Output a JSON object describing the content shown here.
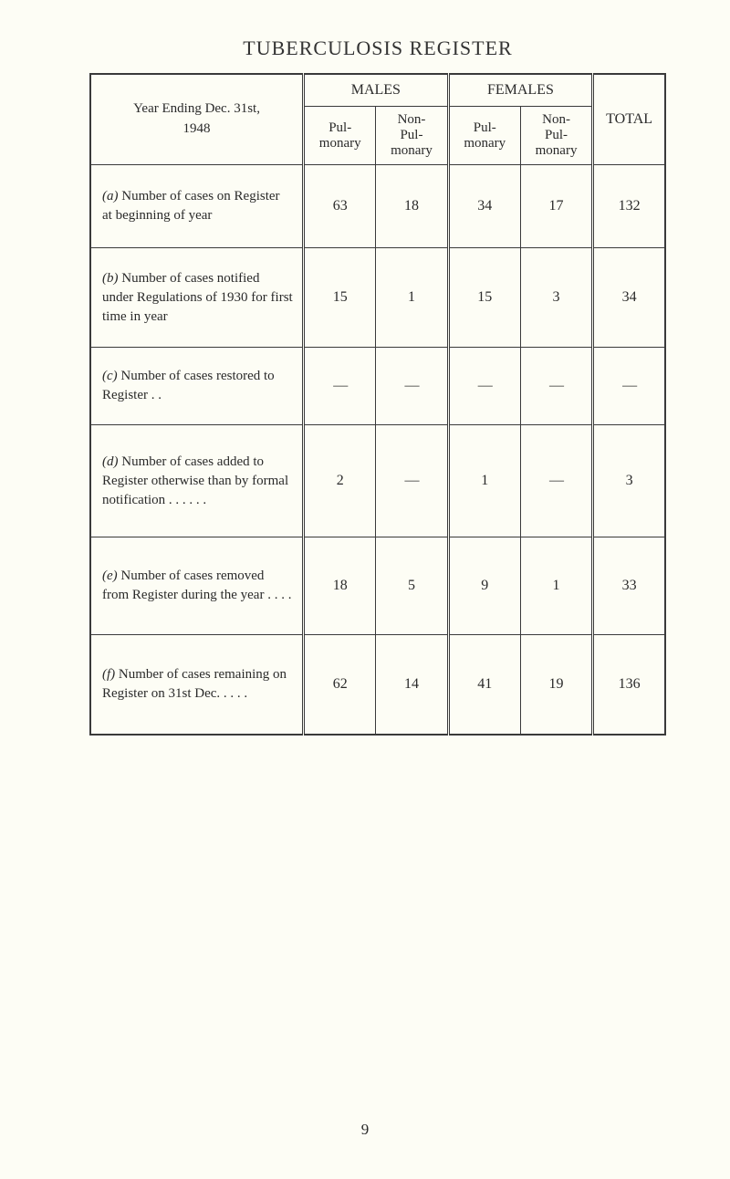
{
  "title": "TUBERCULOSIS REGISTER",
  "year_label_line1": "Year Ending Dec. 31st,",
  "year_label_line2": "1948",
  "header": {
    "males": "MALES",
    "females": "FEMALES",
    "total": "TOTAL",
    "pul": "Pul-\nmonary",
    "nonpul": "Non-\nPul-\nmonary"
  },
  "rows": [
    {
      "tag": "(a)",
      "desc": "Number of cases on Register at beginning of year",
      "m_pul": "63",
      "m_non": "18",
      "f_pul": "34",
      "f_non": "17",
      "total": "132",
      "height": 66
    },
    {
      "tag": "(b)",
      "desc": "Number of cases notified under Regulations of 1930 for first time in year",
      "m_pul": "15",
      "m_non": "1",
      "f_pul": "15",
      "f_non": "3",
      "total": "34",
      "height": 84
    },
    {
      "tag": "(c)",
      "desc": "Number of cases restored to Register   . .",
      "m_pul": "—",
      "m_non": "—",
      "f_pul": "—",
      "f_non": "—",
      "total": "—",
      "height": 60
    },
    {
      "tag": "(d)",
      "desc": "Number of cases added to Register otherwise than by formal notification  . .      . .      . .",
      "m_pul": "2",
      "m_non": "—",
      "f_pul": "1",
      "f_non": "—",
      "total": "3",
      "height": 98
    },
    {
      "tag": "(e)",
      "desc": "Number of cases removed from Register during the year . .    . .",
      "m_pul": "18",
      "m_non": "5",
      "f_pul": "9",
      "f_non": "1",
      "total": "33",
      "height": 82
    },
    {
      "tag": "(f)",
      "desc": "Number of cases remaining on Register on 31st Dec.        . .      . .",
      "m_pul": "62",
      "m_non": "14",
      "f_pul": "41",
      "f_non": "19",
      "total": "136",
      "height": 84
    }
  ],
  "page_number": "9",
  "colors": {
    "background": "#fdfdf5",
    "text": "#2a2a2a",
    "border": "#3a3a3a"
  }
}
